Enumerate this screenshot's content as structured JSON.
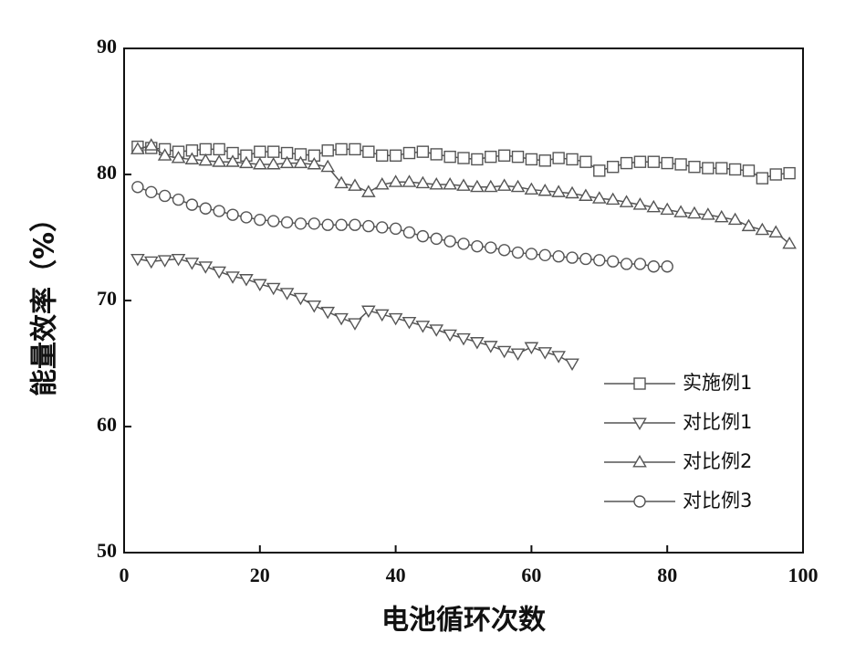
{
  "chart_data": {
    "type": "line",
    "x_label": "电池循环次数",
    "y_label": "能量效率（%）",
    "xlim": [
      0,
      100
    ],
    "xticks": [
      0,
      20,
      40,
      60,
      80,
      100
    ],
    "ylim": [
      50,
      90
    ],
    "yticks": [
      50,
      60,
      70,
      80,
      90
    ],
    "legend": "lower right",
    "series": [
      {
        "name": "实施例1",
        "color": "#555555",
        "marker": "square",
        "x": [
          2,
          4,
          6,
          8,
          10,
          12,
          14,
          16,
          18,
          20,
          22,
          24,
          26,
          28,
          30,
          32,
          34,
          36,
          38,
          40,
          42,
          44,
          46,
          48,
          50,
          52,
          54,
          56,
          58,
          60,
          62,
          64,
          66,
          68,
          70,
          72,
          74,
          76,
          78,
          80,
          82,
          84,
          86,
          88,
          90,
          92,
          94,
          96,
          98
        ],
        "values": [
          82.2,
          82.1,
          82.0,
          81.8,
          81.9,
          82.0,
          82.0,
          81.7,
          81.5,
          81.8,
          81.8,
          81.7,
          81.6,
          81.5,
          81.9,
          82.0,
          82.0,
          81.8,
          81.5,
          81.5,
          81.7,
          81.8,
          81.6,
          81.4,
          81.3,
          81.2,
          81.4,
          81.5,
          81.4,
          81.2,
          81.1,
          81.3,
          81.2,
          81.0,
          80.3,
          80.6,
          80.9,
          81.0,
          81.0,
          80.9,
          80.8,
          80.6,
          80.5,
          80.5,
          80.4,
          80.3,
          79.7,
          80.0,
          80.1
        ]
      },
      {
        "name": "对比例1",
        "color": "#555555",
        "marker": "triangle-down",
        "x": [
          2,
          4,
          6,
          8,
          10,
          12,
          14,
          16,
          18,
          20,
          22,
          24,
          26,
          28,
          30,
          32,
          34,
          36,
          38,
          40,
          42,
          44,
          46,
          48,
          50,
          52,
          54,
          56,
          58,
          60,
          62,
          64,
          66
        ],
        "values": [
          73.3,
          73.1,
          73.2,
          73.3,
          73.0,
          72.7,
          72.3,
          71.9,
          71.7,
          71.3,
          71.0,
          70.6,
          70.2,
          69.6,
          69.1,
          68.6,
          68.2,
          69.2,
          68.9,
          68.6,
          68.3,
          68.0,
          67.7,
          67.3,
          67.0,
          66.7,
          66.4,
          66.0,
          65.8,
          66.3,
          65.9,
          65.6,
          65.0
        ]
      },
      {
        "name": "对比例2",
        "color": "#555555",
        "marker": "triangle-up",
        "x": [
          2,
          4,
          6,
          8,
          10,
          12,
          14,
          16,
          18,
          20,
          22,
          24,
          26,
          28,
          30,
          32,
          34,
          36,
          38,
          40,
          42,
          44,
          46,
          48,
          50,
          52,
          54,
          56,
          58,
          60,
          62,
          64,
          66,
          68,
          70,
          72,
          74,
          76,
          78,
          80,
          82,
          84,
          86,
          88,
          90,
          92,
          94,
          96,
          98
        ],
        "values": [
          82.0,
          82.3,
          81.5,
          81.3,
          81.2,
          81.1,
          81.0,
          81.0,
          80.9,
          80.8,
          80.8,
          80.9,
          80.9,
          80.8,
          80.6,
          79.3,
          79.1,
          78.6,
          79.2,
          79.4,
          79.4,
          79.3,
          79.2,
          79.2,
          79.1,
          79.0,
          79.0,
          79.1,
          79.0,
          78.8,
          78.7,
          78.6,
          78.5,
          78.3,
          78.1,
          78.0,
          77.8,
          77.6,
          77.4,
          77.2,
          77.0,
          76.9,
          76.8,
          76.6,
          76.4,
          75.9,
          75.6,
          75.4,
          74.5
        ]
      },
      {
        "name": "对比例3",
        "color": "#555555",
        "marker": "circle",
        "x": [
          2,
          4,
          6,
          8,
          10,
          12,
          14,
          16,
          18,
          20,
          22,
          24,
          26,
          28,
          30,
          32,
          34,
          36,
          38,
          40,
          42,
          44,
          46,
          48,
          50,
          52,
          54,
          56,
          58,
          60,
          62,
          64,
          66,
          68,
          70,
          72,
          74,
          76,
          78,
          80
        ],
        "values": [
          79.0,
          78.6,
          78.3,
          78.0,
          77.6,
          77.3,
          77.1,
          76.8,
          76.6,
          76.4,
          76.3,
          76.2,
          76.1,
          76.1,
          76.0,
          76.0,
          76.0,
          75.9,
          75.8,
          75.7,
          75.4,
          75.1,
          74.9,
          74.7,
          74.5,
          74.3,
          74.2,
          74.0,
          73.8,
          73.7,
          73.6,
          73.5,
          73.4,
          73.3,
          73.2,
          73.1,
          72.9,
          72.9,
          72.7,
          72.7
        ]
      }
    ]
  }
}
